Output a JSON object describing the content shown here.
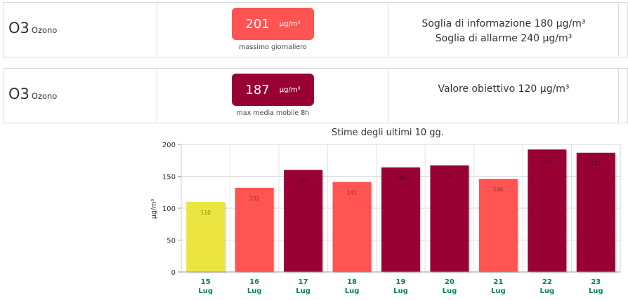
{
  "rows": [
    {
      "code": "O3",
      "name": "Ozono",
      "value": "201",
      "unit": "µg/m³",
      "caption": "massimo giornaliero",
      "badge_color": "#ff5452",
      "thresholds": [
        "Soglia di informazione 180 µg/m³",
        "Soglia di allarme 240 µg/m³"
      ]
    },
    {
      "code": "O3",
      "name": "Ozono",
      "value": "187",
      "unit": "µg/m³",
      "caption": "max media mobile 8h",
      "badge_color": "#990033",
      "thresholds": [
        "Valore obiettivo 120 µg/m³"
      ]
    }
  ],
  "chart_data": {
    "type": "bar",
    "title": "Stime degli ultimi 10 gg.",
    "ylabel": "µg/m³",
    "xlabel": "",
    "ylim": [
      0,
      200
    ],
    "yticks": [
      0,
      50,
      100,
      150,
      200
    ],
    "grid": true,
    "categories": [
      {
        "day": "15",
        "month": "Lug"
      },
      {
        "day": "16",
        "month": "Lug"
      },
      {
        "day": "17",
        "month": "Lug"
      },
      {
        "day": "18",
        "month": "Lug"
      },
      {
        "day": "19",
        "month": "Lug"
      },
      {
        "day": "20",
        "month": "Lug"
      },
      {
        "day": "21",
        "month": "Lug"
      },
      {
        "day": "22",
        "month": "Lug"
      },
      {
        "day": "23",
        "month": "Lug"
      }
    ],
    "values": [
      110,
      132,
      160,
      141,
      164,
      167,
      146,
      192,
      187
    ],
    "colors": [
      "#ece541",
      "#ff5452",
      "#990033",
      "#ff5452",
      "#990033",
      "#990033",
      "#ff5452",
      "#990033",
      "#990033"
    ],
    "category_label_color": "#00845c"
  }
}
